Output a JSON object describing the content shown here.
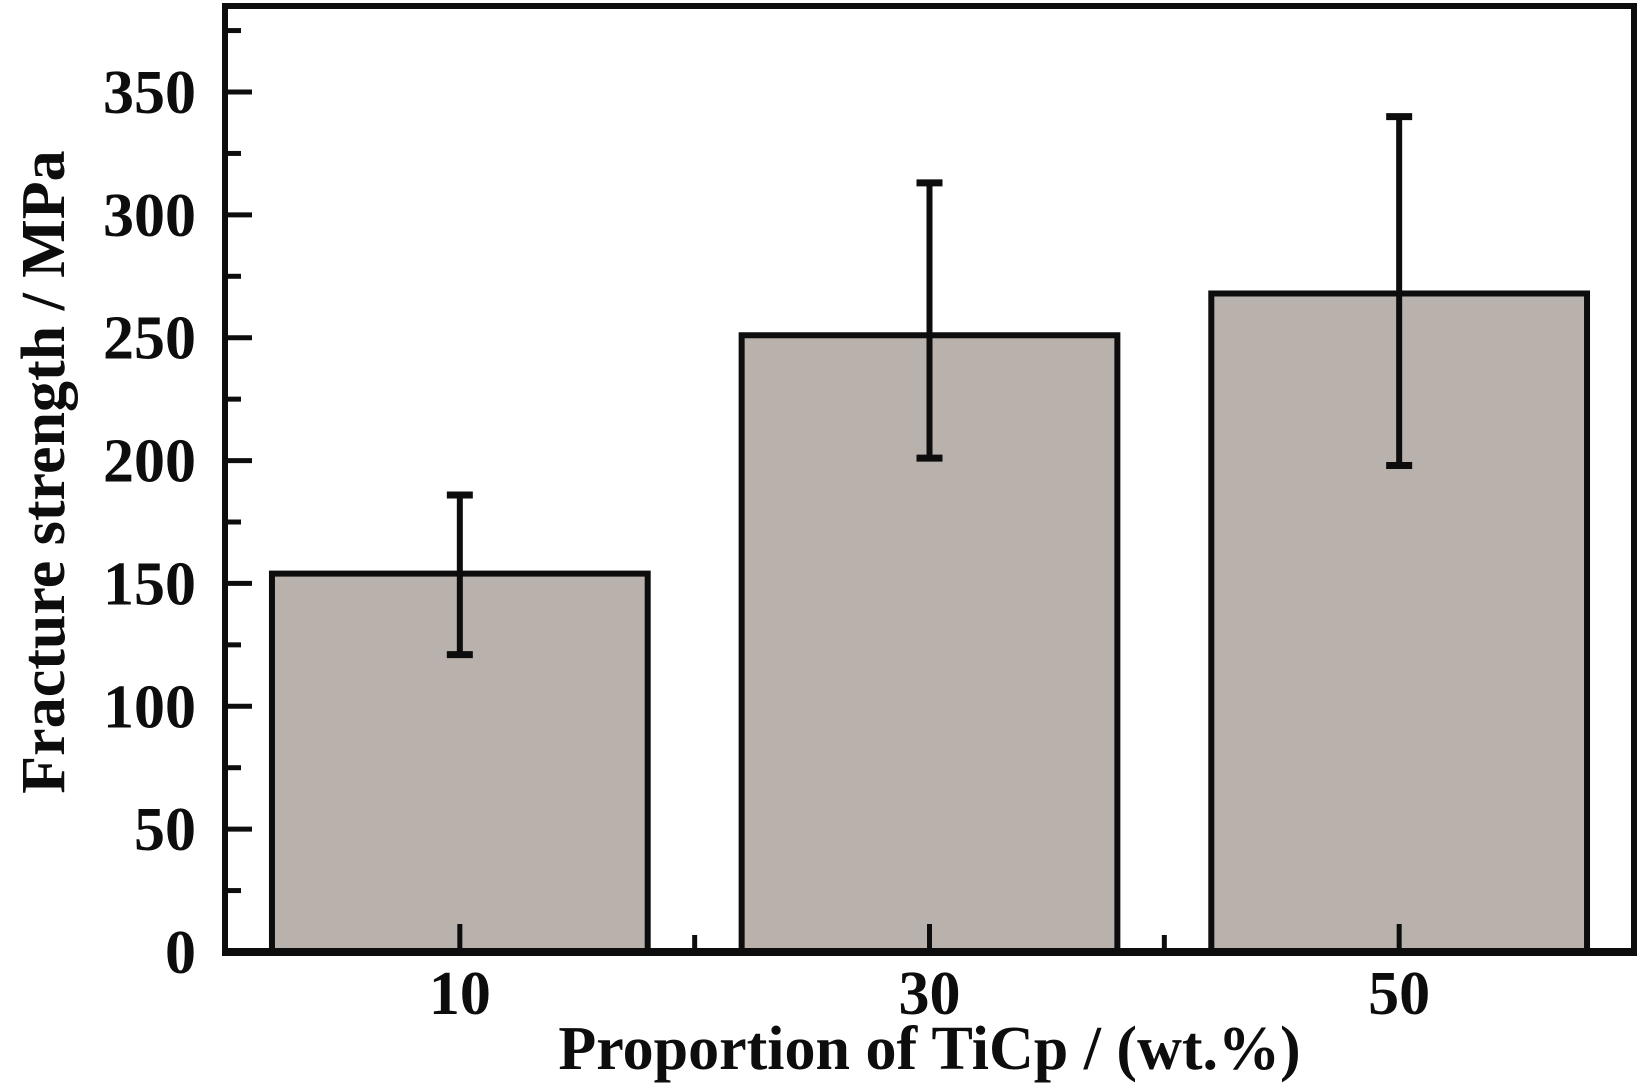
{
  "figure": {
    "background": "#ffffff",
    "frame_color": "#0d0d0d",
    "text_color": "#0d0d0d"
  },
  "chart_data": {
    "type": "bar",
    "title": "",
    "xlabel": "Proportion of TiCp / (wt.%)",
    "ylabel": "Fracture strength / MPa",
    "categories": [
      "10",
      "30",
      "50"
    ],
    "series": [
      {
        "name": "Fracture strength",
        "values": [
          154,
          251,
          268
        ],
        "error_low": [
          121,
          201,
          198
        ],
        "error_high": [
          186,
          313,
          340
        ]
      }
    ],
    "ylim": [
      0,
      385
    ],
    "yticks": [
      0,
      50,
      100,
      150,
      200,
      250,
      300,
      350
    ],
    "y_minor_step": 25,
    "x_minor_ticks_between_categories": true,
    "tick_direction": "in",
    "grid": false,
    "legend_position": "none",
    "bar_color": "#b9b1ac",
    "bar_edge_color": "#0d0d0d",
    "error_bar_color": "#0d0d0d"
  }
}
